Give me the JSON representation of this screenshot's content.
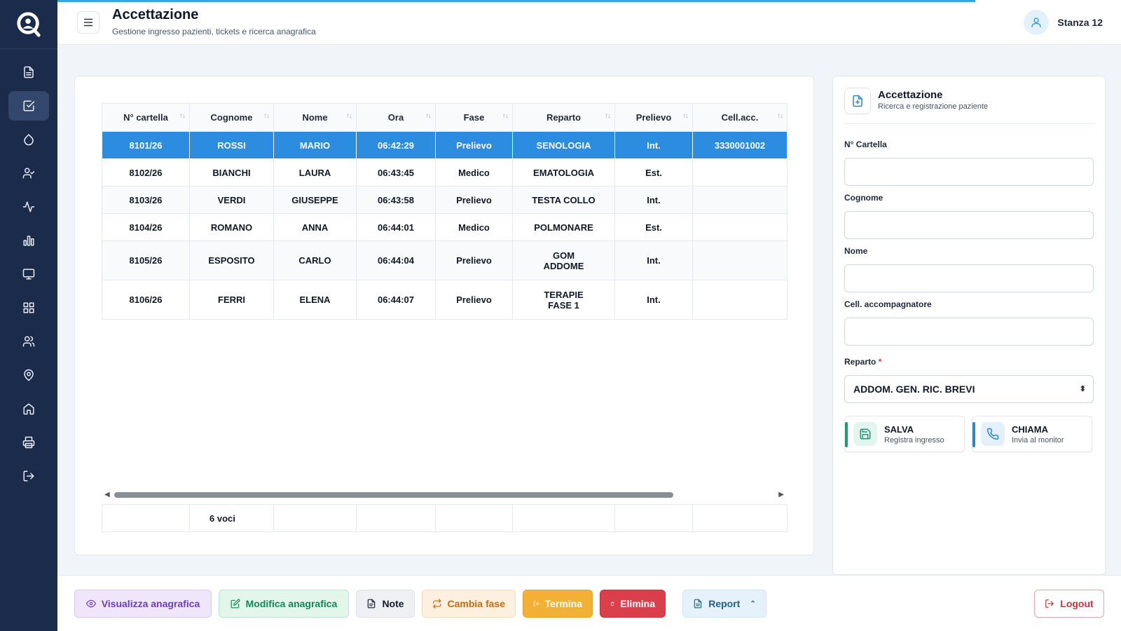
{
  "header": {
    "title": "Accettazione",
    "subtitle": "Gestione ingresso pazienti, tickets e ricerca anagrafica",
    "room": "Stanza 12"
  },
  "sidebar": {
    "items": [
      {
        "icon": "document-icon"
      },
      {
        "icon": "checkbox-icon",
        "active": true
      },
      {
        "icon": "drop-icon"
      },
      {
        "icon": "user-check-icon"
      },
      {
        "icon": "activity-icon"
      },
      {
        "icon": "bar-chart-icon"
      },
      {
        "icon": "monitor-icon"
      },
      {
        "icon": "grid-icon"
      },
      {
        "icon": "users-icon"
      },
      {
        "icon": "map-pin-icon"
      },
      {
        "icon": "home-icon"
      },
      {
        "icon": "printer-icon"
      },
      {
        "icon": "logout-icon"
      }
    ]
  },
  "table": {
    "columns": [
      "N° cartella",
      "Cognome",
      "Nome",
      "Ora",
      "Fase",
      "Reparto",
      "Prelievo",
      "Cell.acc."
    ],
    "sort_glyph": "↑↓",
    "rows": [
      {
        "cartella": "8101/26",
        "cognome": "ROSSI",
        "nome": "MARIO",
        "ora": "06:42:29",
        "fase": "Prelievo",
        "reparto": "SENOLOGIA",
        "prelievo": "Int.",
        "cell": "3330001002",
        "selected": true
      },
      {
        "cartella": "8102/26",
        "cognome": "BIANCHI",
        "nome": "LAURA",
        "ora": "06:43:45",
        "fase": "Medico",
        "reparto": "EMATOLOGIA",
        "prelievo": "Est.",
        "cell": ""
      },
      {
        "cartella": "8103/26",
        "cognome": "VERDI",
        "nome": "GIUSEPPE",
        "ora": "06:43:58",
        "fase": "Prelievo",
        "reparto": "TESTA COLLO",
        "prelievo": "Int.",
        "cell": ""
      },
      {
        "cartella": "8104/26",
        "cognome": "ROMANO",
        "nome": "ANNA",
        "ora": "06:44:01",
        "fase": "Medico",
        "reparto": "POLMONARE",
        "prelievo": "Est.",
        "cell": ""
      },
      {
        "cartella": "8105/26",
        "cognome": "ESPOSITO",
        "nome": "CARLO",
        "ora": "06:44:04",
        "fase": "Prelievo",
        "reparto_line1": "GOM",
        "reparto_line2": "ADDOME",
        "prelievo": "Int.",
        "cell": ""
      },
      {
        "cartella": "8106/26",
        "cognome": "FERRI",
        "nome": "ELENA",
        "ora": "06:44:07",
        "fase": "Prelievo",
        "reparto_line1": "TERAPIE",
        "reparto_line2": "FASE 1",
        "prelievo": "Int.",
        "cell": ""
      }
    ],
    "footer_count": "6 voci"
  },
  "form": {
    "title": "Accettazione",
    "subtitle": "Ricerca e registrazione paziente",
    "fields": {
      "cartella_label": "N° Cartella",
      "cognome_label": "Cognome",
      "nome_label": "Nome",
      "cell_label": "Cell. accompagnatore",
      "reparto_label": "Reparto",
      "required_mark": "*",
      "reparto_value": "ADDOM. GEN. RIC. BREVI"
    },
    "save": {
      "title": "SALVA",
      "subtitle": "Registra ingresso",
      "color": "#1e9c72"
    },
    "call": {
      "title": "CHIAMA",
      "subtitle": "Invia al monitor",
      "color": "#2a87c9"
    }
  },
  "toolbar": {
    "visualizza": "Visualizza anagrafica",
    "modifica": "Modifica anagrafica",
    "note": "Note",
    "cambia": "Cambia fase",
    "termina": "Termina",
    "elimina": "Elimina",
    "report": "Report",
    "logout": "Logout"
  },
  "colors": {
    "sidebar": "#1b2b4b",
    "accent": "#2b8ce0",
    "progress": "#38a6e0"
  }
}
